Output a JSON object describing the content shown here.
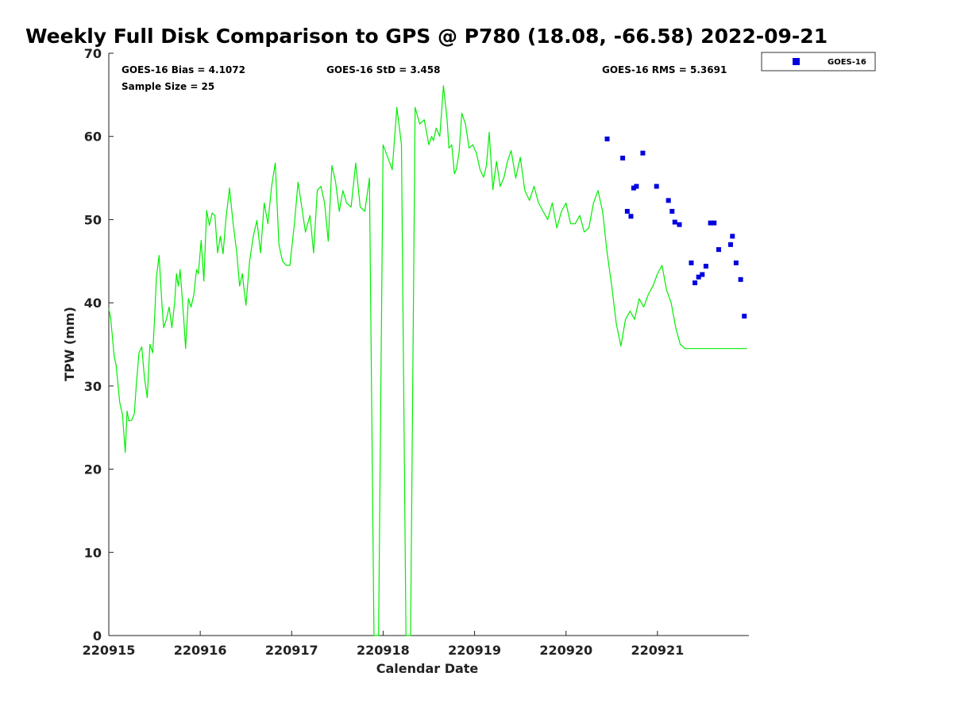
{
  "chart_data": {
    "type": "scatter",
    "title": "Weekly Full Disk Comparison to GPS @ P780 (18.08, -66.58) 2022-09-21",
    "xlabel": "Calendar Date",
    "ylabel": "TPW (mm)",
    "xlim": [
      0,
      7
    ],
    "ylim": [
      0,
      70
    ],
    "x_ticks": [
      {
        "value": 0,
        "label": "220915"
      },
      {
        "value": 1,
        "label": "220916"
      },
      {
        "value": 2,
        "label": "220917"
      },
      {
        "value": 3,
        "label": "220918"
      },
      {
        "value": 4,
        "label": "220919"
      },
      {
        "value": 5,
        "label": "220920"
      },
      {
        "value": 6,
        "label": "220921"
      }
    ],
    "y_ticks": [
      0,
      10,
      20,
      30,
      40,
      50,
      60,
      70
    ],
    "stats": {
      "bias": "GOES-16 Bias = 4.1072",
      "std": "GOES-16 StD = 3.458",
      "rms": "GOES-16 RMS = 5.3691",
      "sample": "Sample Size = 25"
    },
    "legend": {
      "label": "GOES-16",
      "position": "outside-top-right"
    },
    "colors": {
      "gps": "#00ee00",
      "goes": "#0000dd"
    },
    "series": [
      {
        "kind": "line",
        "x": [
          0.0,
          0.02,
          0.06,
          0.08,
          0.12,
          0.15,
          0.18,
          0.2,
          0.22,
          0.25,
          0.28,
          0.3,
          0.33,
          0.36,
          0.39,
          0.42,
          0.45,
          0.48,
          0.5,
          0.52,
          0.55,
          0.58,
          0.6,
          0.63,
          0.66,
          0.69,
          0.72,
          0.74,
          0.76,
          0.78,
          0.8,
          0.82,
          0.84,
          0.87,
          0.9,
          0.93,
          0.96,
          0.98,
          1.01,
          1.04,
          1.07,
          1.1,
          1.13,
          1.16,
          1.19,
          1.22,
          1.25,
          1.28,
          1.32,
          1.36,
          1.4,
          1.43,
          1.46,
          1.5,
          1.54,
          1.58,
          1.62,
          1.66,
          1.7,
          1.74,
          1.78,
          1.82,
          1.86,
          1.9,
          1.94,
          1.98,
          2.03,
          2.07,
          2.11,
          2.15,
          2.2,
          2.24,
          2.28,
          2.32,
          2.36,
          2.4,
          2.44,
          2.48,
          2.52,
          2.56,
          2.6,
          2.65,
          2.7,
          2.75,
          2.8,
          2.85,
          2.9,
          2.95,
          3.0,
          3.05,
          3.1,
          3.15,
          3.2,
          3.25,
          3.3,
          3.35,
          3.4,
          3.45,
          3.5,
          3.53,
          3.55,
          3.58,
          3.62,
          3.66,
          3.7,
          3.72,
          3.75,
          3.78,
          3.8,
          3.83,
          3.86,
          3.9,
          3.94,
          3.98,
          4.02,
          4.06,
          4.1,
          4.13,
          4.16,
          4.2,
          4.24,
          4.28,
          4.32,
          4.36,
          4.4,
          4.45,
          4.5,
          4.55,
          4.6,
          4.65,
          4.7,
          4.75,
          4.8,
          4.85,
          4.9,
          4.95,
          5.0,
          5.05,
          5.1,
          5.15,
          5.2,
          5.25,
          5.3,
          5.35,
          5.4,
          5.45,
          5.5,
          5.55,
          5.6,
          5.65,
          5.7,
          5.75,
          5.8,
          5.85,
          5.9,
          5.95,
          6.0,
          6.05,
          6.1,
          6.15,
          6.2,
          6.25,
          6.3,
          6.35,
          6.38,
          6.42,
          6.46,
          6.5,
          6.55,
          6.6,
          6.65,
          6.7,
          6.75,
          6.8,
          6.84,
          6.88,
          6.92,
          6.95,
          6.98
        ],
        "values": [
          39.3,
          38.2,
          33.5,
          32.5,
          28.0,
          26.5,
          22.0,
          27.0,
          25.8,
          25.9,
          26.7,
          30.0,
          34.0,
          34.7,
          31.0,
          28.6,
          35.0,
          34.0,
          38.0,
          43.0,
          45.7,
          40.0,
          37.0,
          38.0,
          39.5,
          37.0,
          40.0,
          43.5,
          42.0,
          44.0,
          41.0,
          38.0,
          34.5,
          40.5,
          39.5,
          41.0,
          44.0,
          43.5,
          47.5,
          42.6,
          51.1,
          49.3,
          50.8,
          50.5,
          46.0,
          48.0,
          45.9,
          50.0,
          53.8,
          49.5,
          46.0,
          42.0,
          43.5,
          39.7,
          45.0,
          48.0,
          49.9,
          46.0,
          52.0,
          49.5,
          54.0,
          56.8,
          47.0,
          45.0,
          44.5,
          44.5,
          49.5,
          54.5,
          51.5,
          48.5,
          50.5,
          46.0,
          53.5,
          54.0,
          52.0,
          47.4,
          56.5,
          54.5,
          51.0,
          53.5,
          52.0,
          51.5,
          56.8,
          51.5,
          51.0,
          55.0,
          0.0,
          0.0,
          59.0,
          57.5,
          56.0,
          63.5,
          59.0,
          0.0,
          0.0,
          63.5,
          61.5,
          62.0,
          59.0,
          60.0,
          59.5,
          61.0,
          60.0,
          66.1,
          62.0,
          58.6,
          59.0,
          55.5,
          56.0,
          58.0,
          62.8,
          61.5,
          58.6,
          59.0,
          58.0,
          56.0,
          55.1,
          56.5,
          60.5,
          53.6,
          57.0,
          54.0,
          55.0,
          57.0,
          58.3,
          55.0,
          57.5,
          53.5,
          52.3,
          54.0,
          52.0,
          51.0,
          50.0,
          52.0,
          49.0,
          51.0,
          52.0,
          49.5,
          49.5,
          50.5,
          48.5,
          49.0,
          52.0,
          53.5,
          51.0,
          46.0,
          42.0,
          37.5,
          34.8,
          38.0,
          39.0,
          38.0,
          40.5,
          39.5,
          41.0,
          42.0,
          43.5,
          44.5,
          41.5,
          40.0,
          37.0,
          35.0,
          34.5,
          34.5,
          34.5,
          34.5,
          34.5,
          34.5,
          34.5,
          34.5,
          34.5,
          34.5,
          34.5,
          34.5,
          34.5,
          34.5,
          34.5,
          34.5,
          34.5
        ]
      },
      {
        "name": "GOES-16",
        "kind": "scatter",
        "x": [
          5.45,
          5.62,
          5.67,
          5.71,
          5.74,
          5.77,
          5.84,
          5.99,
          6.12,
          6.16,
          6.19,
          6.24,
          6.37,
          6.41,
          6.45,
          6.49,
          6.53,
          6.58,
          6.62,
          6.67,
          6.8,
          6.82,
          6.86,
          6.91,
          6.95
        ],
        "values": [
          59.7,
          57.4,
          51.0,
          50.4,
          53.8,
          54.0,
          58.0,
          54.0,
          52.3,
          51.0,
          49.7,
          49.4,
          44.8,
          42.4,
          43.1,
          43.4,
          44.4,
          49.6,
          49.6,
          46.4,
          47.0,
          48.0,
          44.8,
          42.8,
          38.4
        ]
      }
    ]
  }
}
